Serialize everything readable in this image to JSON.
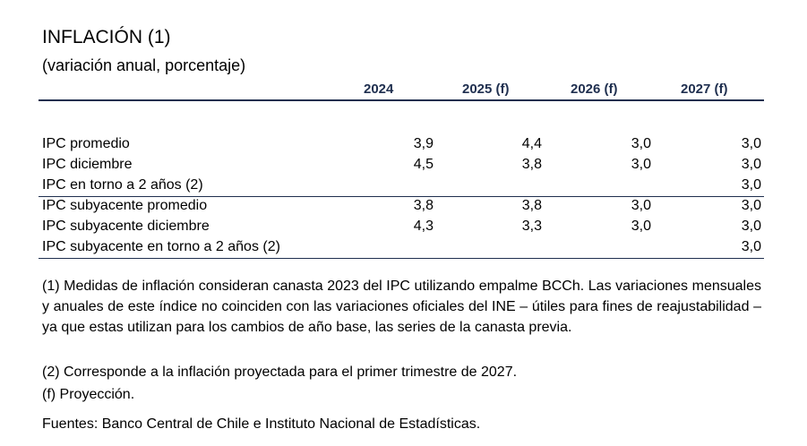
{
  "title": "INFLACIÓN (1)",
  "subtitle": "(variación anual, porcentaje)",
  "columns": [
    "2024",
    "2025 (f)",
    "2026 (f)",
    "2027 (f)"
  ],
  "rows": [
    {
      "label": "IPC promedio",
      "values": [
        "3,9",
        "4,4",
        "3,0",
        "3,0"
      ]
    },
    {
      "label": "IPC diciembre",
      "values": [
        "4,5",
        "3,8",
        "3,0",
        "3,0"
      ]
    },
    {
      "label": "IPC en torno a 2 años (2)",
      "values": [
        "",
        "",
        "",
        "3,0"
      ]
    },
    {
      "label": "IPC subyacente promedio",
      "values": [
        "3,8",
        "3,8",
        "3,0",
        "3,0"
      ]
    },
    {
      "label": "IPC subyacente diciembre",
      "values": [
        "4,3",
        "3,3",
        "3,0",
        "3,0"
      ]
    },
    {
      "label": "IPC subyacente en torno a 2 años (2)",
      "values": [
        "",
        "",
        "",
        "3,0"
      ]
    }
  ],
  "notes": {
    "note1": "(1) Medidas de inflación consideran canasta 2023 del IPC utilizando empalme BCCh. Las variaciones mensuales y anuales de este índice no coinciden con las variaciones oficiales del INE – útiles para fines de reajustabilidad – ya que estas utilizan para los cambios de año base, las series de la canasta previa.",
    "note2": "(2) Corresponde a la inflación proyectada para el primer trimestre de 2027.",
    "note3": "(f) Proyección.",
    "sources": "Fuentes: Banco Central de Chile e Instituto Nacional de Estadísticas."
  }
}
